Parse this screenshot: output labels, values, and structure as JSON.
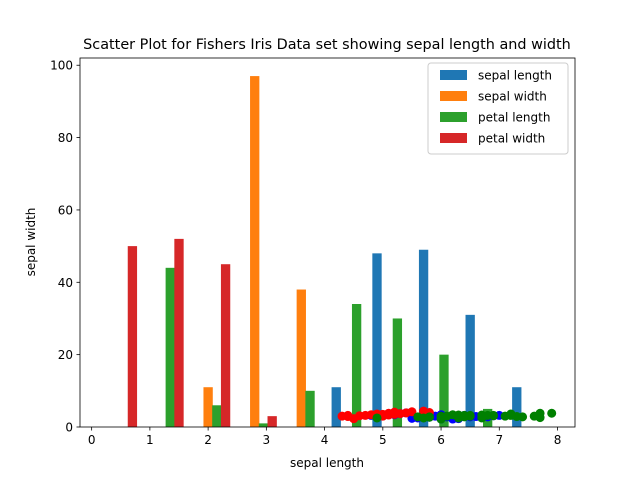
{
  "chart_data": {
    "type": "bar",
    "title": "Scatter Plot for Fishers Iris Data set showing sepal length and width",
    "xlabel": "sepal length",
    "ylabel": "sepal width",
    "xlim": [
      -0.2,
      8.3
    ],
    "ylim": [
      0,
      102
    ],
    "xticks": [
      0,
      1,
      2,
      3,
      4,
      5,
      6,
      7,
      8
    ],
    "yticks": [
      0,
      20,
      40,
      60,
      80,
      100
    ],
    "grid": false,
    "legend_placement": "top-right",
    "series": [
      {
        "name": "sepal length",
        "color": "#1f77b4",
        "bars": [
          [
            4.2,
            11
          ],
          [
            4.9,
            48
          ],
          [
            5.7,
            49
          ],
          [
            6.5,
            31
          ],
          [
            7.3,
            11
          ]
        ]
      },
      {
        "name": "sepal width",
        "color": "#ff7f0e",
        "bars": [
          [
            2.0,
            11
          ],
          [
            2.8,
            97
          ],
          [
            3.6,
            38
          ]
        ]
      },
      {
        "name": "petal length",
        "color": "#2ca02c",
        "bars": [
          [
            1.35,
            44
          ],
          [
            2.15,
            6
          ],
          [
            2.95,
            1
          ],
          [
            3.75,
            10
          ],
          [
            4.55,
            34
          ],
          [
            5.25,
            30
          ],
          [
            6.05,
            20
          ],
          [
            6.8,
            5
          ]
        ]
      },
      {
        "name": "petal width",
        "color": "#d62728",
        "bars": [
          [
            0.7,
            50
          ],
          [
            1.5,
            52
          ],
          [
            2.3,
            45
          ],
          [
            3.1,
            3
          ]
        ]
      }
    ],
    "scatter": [
      {
        "color": "#0000ff",
        "points": [
          [
            4.9,
            3.0
          ],
          [
            5.0,
            3.4
          ],
          [
            5.1,
            3.5
          ],
          [
            5.2,
            3.4
          ],
          [
            5.4,
            3.9
          ],
          [
            5.5,
            2.4
          ],
          [
            5.6,
            2.5
          ],
          [
            5.7,
            2.8
          ],
          [
            5.8,
            2.7
          ],
          [
            5.9,
            3.0
          ],
          [
            6.0,
            2.2
          ],
          [
            6.1,
            2.8
          ],
          [
            6.2,
            2.2
          ],
          [
            6.3,
            2.3
          ],
          [
            6.4,
            3.2
          ],
          [
            6.5,
            2.8
          ],
          [
            6.6,
            2.9
          ],
          [
            6.7,
            3.1
          ],
          [
            6.8,
            2.8
          ],
          [
            6.9,
            3.1
          ],
          [
            7.0,
            3.2
          ],
          [
            4.8,
            3.2
          ],
          [
            5.3,
            3.7
          ],
          [
            5.7,
            3.0
          ],
          [
            6.0,
            3.4
          ]
        ]
      },
      {
        "color": "#ff0000",
        "points": [
          [
            4.3,
            3.0
          ],
          [
            4.4,
            3.2
          ],
          [
            4.5,
            2.3
          ],
          [
            4.6,
            3.1
          ],
          [
            4.7,
            3.2
          ],
          [
            4.8,
            3.4
          ],
          [
            4.9,
            3.6
          ],
          [
            5.0,
            3.5
          ],
          [
            5.1,
            3.8
          ],
          [
            5.2,
            4.1
          ],
          [
            5.3,
            3.7
          ],
          [
            5.4,
            3.9
          ],
          [
            5.5,
            4.2
          ],
          [
            5.7,
            4.4
          ],
          [
            5.8,
            4.0
          ],
          [
            5.0,
            3.0
          ],
          [
            5.2,
            3.5
          ],
          [
            4.4,
            2.9
          ],
          [
            4.9,
            3.1
          ],
          [
            5.1,
            3.3
          ]
        ]
      },
      {
        "color": "#008000",
        "points": [
          [
            4.9,
            2.5
          ],
          [
            5.6,
            2.8
          ],
          [
            5.8,
            2.7
          ],
          [
            6.0,
            3.0
          ],
          [
            6.1,
            3.0
          ],
          [
            6.2,
            3.4
          ],
          [
            6.3,
            3.3
          ],
          [
            6.4,
            3.2
          ],
          [
            6.5,
            3.0
          ],
          [
            6.7,
            3.3
          ],
          [
            6.8,
            3.2
          ],
          [
            6.9,
            3.1
          ],
          [
            7.1,
            3.0
          ],
          [
            7.2,
            3.6
          ],
          [
            7.3,
            2.9
          ],
          [
            7.4,
            2.8
          ],
          [
            7.6,
            3.0
          ],
          [
            7.7,
            3.8
          ],
          [
            7.7,
            2.6
          ],
          [
            7.9,
            3.8
          ],
          [
            6.3,
            2.5
          ],
          [
            6.7,
            2.5
          ],
          [
            5.7,
            2.5
          ],
          [
            6.4,
            2.8
          ],
          [
            6.5,
            3.2
          ],
          [
            6.0,
            2.2
          ],
          [
            7.2,
            3.2
          ],
          [
            6.9,
            3.2
          ],
          [
            5.8,
            2.8
          ]
        ]
      }
    ]
  }
}
